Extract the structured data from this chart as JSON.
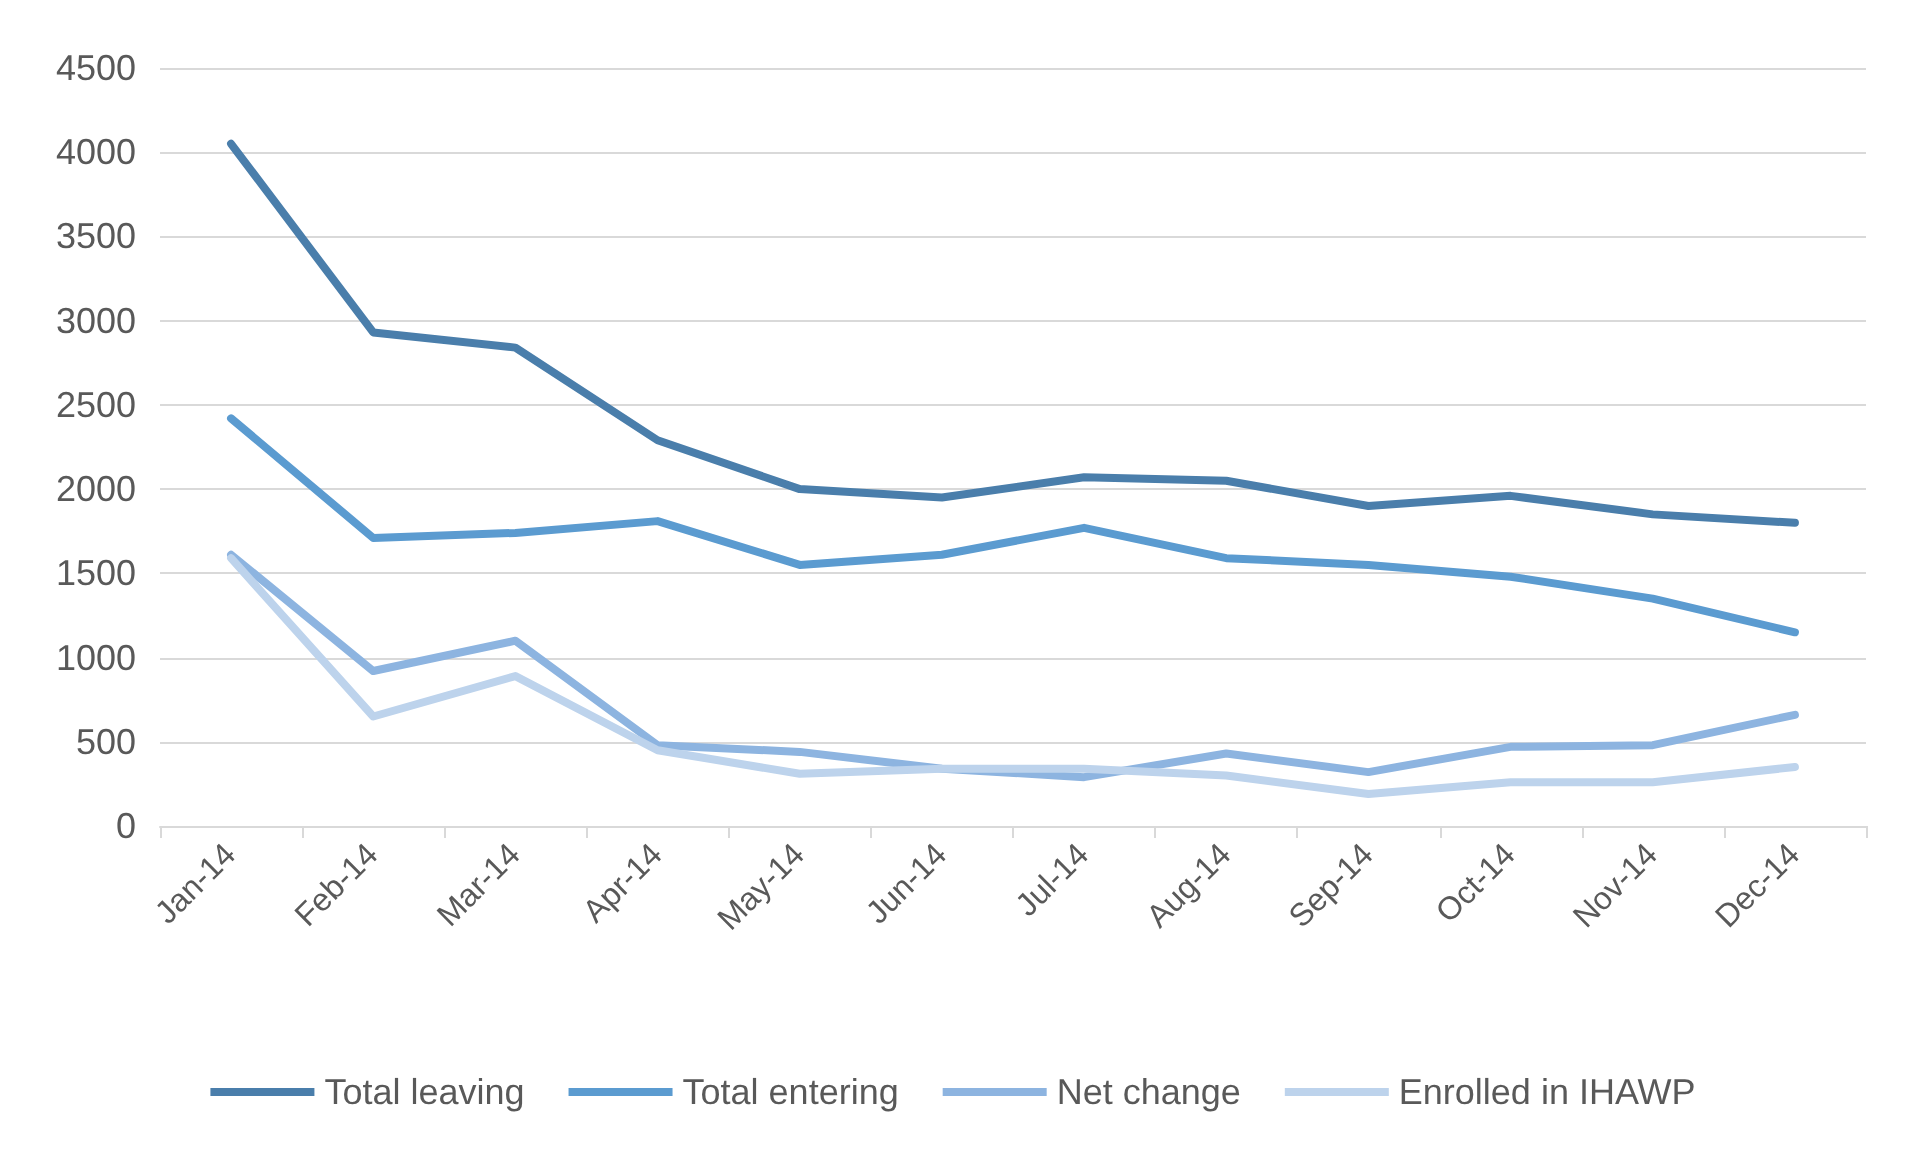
{
  "chart_data": {
    "type": "line",
    "categories": [
      "Jan-14",
      "Feb-14",
      "Mar-14",
      "Apr-14",
      "May-14",
      "Jun-14",
      "Jul-14",
      "Aug-14",
      "Sep-14",
      "Oct-14",
      "Nov-14",
      "Dec-14"
    ],
    "series": [
      {
        "name": "Total leaving",
        "color": "#4a7eab",
        "values": [
          4050,
          2930,
          2840,
          2290,
          2000,
          1950,
          2070,
          2050,
          1900,
          1960,
          1850,
          1800
        ]
      },
      {
        "name": "Total entering",
        "color": "#5b9bd0",
        "values": [
          2420,
          1710,
          1740,
          1810,
          1550,
          1610,
          1770,
          1590,
          1550,
          1480,
          1350,
          1150
        ]
      },
      {
        "name": "Net change",
        "color": "#8db4e0",
        "values": [
          1610,
          920,
          1100,
          480,
          440,
          340,
          290,
          430,
          320,
          470,
          480,
          660
        ]
      },
      {
        "name": "Enrolled in IHAWP",
        "color": "#bdd3ec",
        "values": [
          1590,
          650,
          890,
          450,
          310,
          340,
          340,
          300,
          190,
          260,
          260,
          350
        ]
      }
    ],
    "ylim": [
      0,
      4500
    ],
    "yticks": [
      0,
      500,
      1000,
      1500,
      2000,
      2500,
      3000,
      3500,
      4000,
      4500
    ],
    "grid": "y",
    "legend": "bottom",
    "marker": "none",
    "line_style": "solid"
  }
}
